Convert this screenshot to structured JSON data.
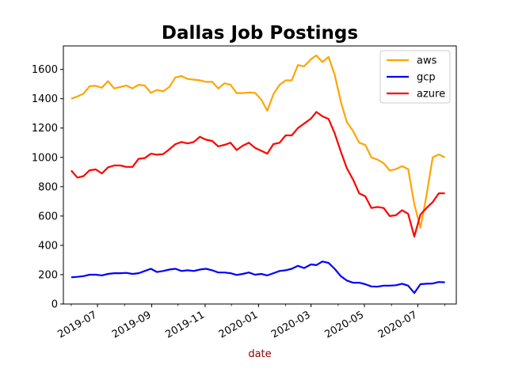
{
  "chart_data": {
    "type": "line",
    "title": "Dallas Job Postings",
    "xlabel": "date",
    "ylabel": "",
    "ylim": [
      0,
      1760
    ],
    "yticks": [
      0,
      200,
      400,
      600,
      800,
      1000,
      1200,
      1400,
      1600
    ],
    "xlim": [
      "2019-05-23",
      "2020-08-14"
    ],
    "xticks": [
      {
        "date": "2019-07-01",
        "label": "2019-07"
      },
      {
        "date": "2019-09-01",
        "label": "2019-09"
      },
      {
        "date": "2019-11-01",
        "label": "2019-11"
      },
      {
        "date": "2020-01-01",
        "label": "2020-01"
      },
      {
        "date": "2020-03-01",
        "label": "2020-03"
      },
      {
        "date": "2020-05-01",
        "label": "2020-05"
      },
      {
        "date": "2020-07-01",
        "label": "2020-07"
      }
    ],
    "legend_position": "top-right",
    "grid": false,
    "x": [
      "2019-06-01",
      "2019-06-08",
      "2019-06-15",
      "2019-06-22",
      "2019-06-29",
      "2019-07-06",
      "2019-07-13",
      "2019-07-20",
      "2019-07-27",
      "2019-08-03",
      "2019-08-10",
      "2019-08-17",
      "2019-08-24",
      "2019-08-31",
      "2019-09-07",
      "2019-09-14",
      "2019-09-21",
      "2019-09-28",
      "2019-10-05",
      "2019-10-12",
      "2019-10-19",
      "2019-10-26",
      "2019-11-02",
      "2019-11-09",
      "2019-11-16",
      "2019-11-23",
      "2019-11-30",
      "2019-12-07",
      "2019-12-14",
      "2019-12-21",
      "2019-12-28",
      "2020-01-04",
      "2020-01-11",
      "2020-01-18",
      "2020-01-25",
      "2020-02-01",
      "2020-02-08",
      "2020-02-15",
      "2020-02-22",
      "2020-03-01",
      "2020-03-07",
      "2020-03-14",
      "2020-03-21",
      "2020-03-28",
      "2020-04-04",
      "2020-04-11",
      "2020-04-18",
      "2020-04-25",
      "2020-05-02",
      "2020-05-09",
      "2020-05-16",
      "2020-05-23",
      "2020-05-30",
      "2020-06-06",
      "2020-06-13",
      "2020-06-20",
      "2020-06-27",
      "2020-07-04",
      "2020-07-11",
      "2020-07-18",
      "2020-07-25",
      "2020-08-01"
    ],
    "series": [
      {
        "name": "aws",
        "color": "#ffa500",
        "values": [
          1400,
          1415,
          1435,
          1485,
          1488,
          1475,
          1520,
          1470,
          1480,
          1490,
          1470,
          1495,
          1490,
          1440,
          1460,
          1450,
          1480,
          1545,
          1555,
          1535,
          1530,
          1525,
          1515,
          1515,
          1470,
          1505,
          1495,
          1438,
          1438,
          1442,
          1440,
          1395,
          1318,
          1430,
          1495,
          1525,
          1525,
          1630,
          1620,
          1670,
          1695,
          1650,
          1685,
          1565,
          1380,
          1240,
          1180,
          1100,
          1085,
          1000,
          985,
          960,
          910,
          920,
          940,
          920,
          680,
          520,
          740,
          1000,
          1020,
          1000
        ]
      },
      {
        "name": "gcp",
        "color": "#0000ff",
        "values": [
          182,
          185,
          190,
          200,
          200,
          195,
          205,
          210,
          210,
          212,
          205,
          210,
          225,
          240,
          218,
          225,
          235,
          240,
          225,
          230,
          225,
          235,
          240,
          230,
          215,
          215,
          210,
          198,
          205,
          215,
          200,
          205,
          195,
          210,
          225,
          230,
          240,
          260,
          245,
          270,
          265,
          290,
          280,
          240,
          190,
          160,
          145,
          145,
          135,
          120,
          118,
          125,
          125,
          128,
          138,
          125,
          75,
          135,
          138,
          140,
          150,
          148
        ]
      },
      {
        "name": "azure",
        "color": "#ff0000",
        "values": [
          910,
          862,
          872,
          912,
          918,
          890,
          932,
          945,
          945,
          935,
          935,
          990,
          995,
          1025,
          1018,
          1022,
          1055,
          1090,
          1105,
          1095,
          1105,
          1140,
          1120,
          1112,
          1075,
          1085,
          1100,
          1050,
          1080,
          1100,
          1065,
          1045,
          1025,
          1090,
          1100,
          1150,
          1150,
          1200,
          1230,
          1265,
          1310,
          1280,
          1262,
          1165,
          1040,
          925,
          850,
          755,
          735,
          655,
          662,
          655,
          600,
          605,
          640,
          615,
          460,
          610,
          655,
          695,
          755,
          755
        ]
      }
    ]
  }
}
